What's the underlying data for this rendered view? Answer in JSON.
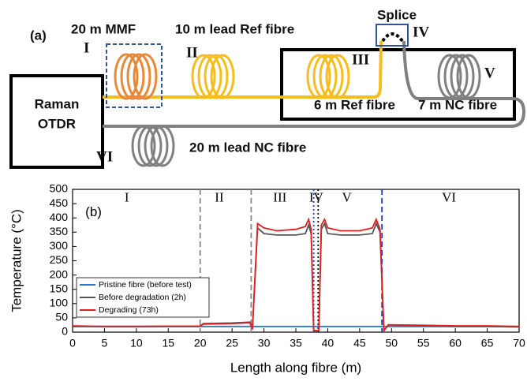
{
  "diagram": {
    "panel": "(a)",
    "mmf": "20 m MMF",
    "lead_ref": "10 m lead Ref fibre",
    "splice": "Splice",
    "otdr_line1": "Raman",
    "otdr_line2": "OTDR",
    "ref": "6 m Ref fibre",
    "nc": "7 m NC fibre",
    "lead_nc": "20 m lead NC fibre",
    "sections": [
      "I",
      "II",
      "III",
      "IV",
      "V",
      "VI"
    ]
  },
  "chart_data": {
    "type": "line",
    "xlabel": "Length along fibre (m)",
    "ylabel": "Temperature (°C)",
    "xlim": [
      0,
      70
    ],
    "ylim": [
      0,
      500
    ],
    "xticks": [
      0,
      5,
      10,
      15,
      20,
      25,
      30,
      35,
      40,
      45,
      50,
      55,
      60,
      65,
      70
    ],
    "yticks": [
      0,
      50,
      100,
      150,
      200,
      250,
      300,
      350,
      400,
      450,
      500
    ],
    "x": [
      0,
      5,
      10,
      15,
      19.9,
      20.5,
      25,
      27.8,
      28.2,
      29,
      30,
      32,
      35,
      36.5,
      37,
      37.4,
      37.8,
      38.6,
      39,
      39.5,
      40,
      42,
      45,
      47,
      47.6,
      48.2,
      48.8,
      49.5,
      55,
      60,
      65,
      70
    ],
    "series": [
      {
        "name": "Pristine fibre (before test)",
        "color": "#2b78d0",
        "values": [
          20,
          20,
          20,
          20,
          20,
          20,
          20,
          20,
          20,
          20,
          20,
          20,
          20,
          20,
          20,
          20,
          20,
          20,
          20,
          20,
          20,
          20,
          20,
          20,
          20,
          20,
          20,
          20,
          20,
          20,
          20,
          20
        ]
      },
      {
        "name": "Before degradation (2h)",
        "color": "#555555",
        "values": [
          20,
          20,
          20,
          20,
          20,
          30,
          32,
          35,
          10,
          365,
          345,
          340,
          340,
          345,
          375,
          345,
          5,
          5,
          360,
          380,
          345,
          340,
          340,
          345,
          380,
          350,
          5,
          25,
          22,
          20,
          20,
          18
        ]
      },
      {
        "name": "Degrading (73h)",
        "color": "#e0201f",
        "values": [
          22,
          20,
          20,
          21,
          21,
          28,
          30,
          33,
          10,
          380,
          365,
          355,
          360,
          370,
          395,
          360,
          5,
          5,
          375,
          395,
          365,
          355,
          355,
          365,
          395,
          360,
          5,
          26,
          24,
          22,
          22,
          20
        ]
      }
    ],
    "vlines": [
      {
        "x": 20,
        "color": "#888888",
        "dash": "dashed"
      },
      {
        "x": 28,
        "color": "#888888",
        "dash": "dashed"
      },
      {
        "x": 37.8,
        "color": "#1f3fbf",
        "dash": "dotted"
      },
      {
        "x": 38.5,
        "color": "#000000",
        "dash": "dotted"
      },
      {
        "x": 48.5,
        "color": "#1f3fbf",
        "dash": "dashed"
      }
    ],
    "annotations": [
      {
        "text": "(b)",
        "x": 2,
        "y": 418
      },
      {
        "text": "I",
        "x": 8.5,
        "y": 468
      },
      {
        "text": "II",
        "x": 23,
        "y": 468
      },
      {
        "text": "III",
        "x": 32.5,
        "y": 468
      },
      {
        "text": "IV",
        "x": 38.2,
        "y": 468
      },
      {
        "text": "V",
        "x": 43,
        "y": 468
      },
      {
        "text": "VI",
        "x": 59,
        "y": 468
      }
    ]
  }
}
